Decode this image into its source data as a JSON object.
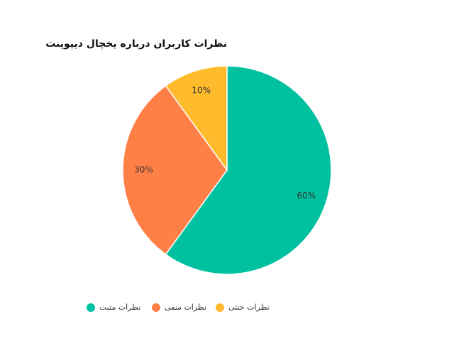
{
  "chart_data": {
    "type": "pie",
    "title": "نظرات کاربران درباره یخچال دیپوینت",
    "categories": [
      "نظرات مثبت",
      "نظرات منفی",
      "نظرات خنثی"
    ],
    "values": [
      60,
      30,
      10
    ],
    "value_labels": [
      "60%",
      "30%",
      "10%"
    ],
    "colors": [
      "#00c19f",
      "#ff8047",
      "#ffbb2c"
    ]
  }
}
